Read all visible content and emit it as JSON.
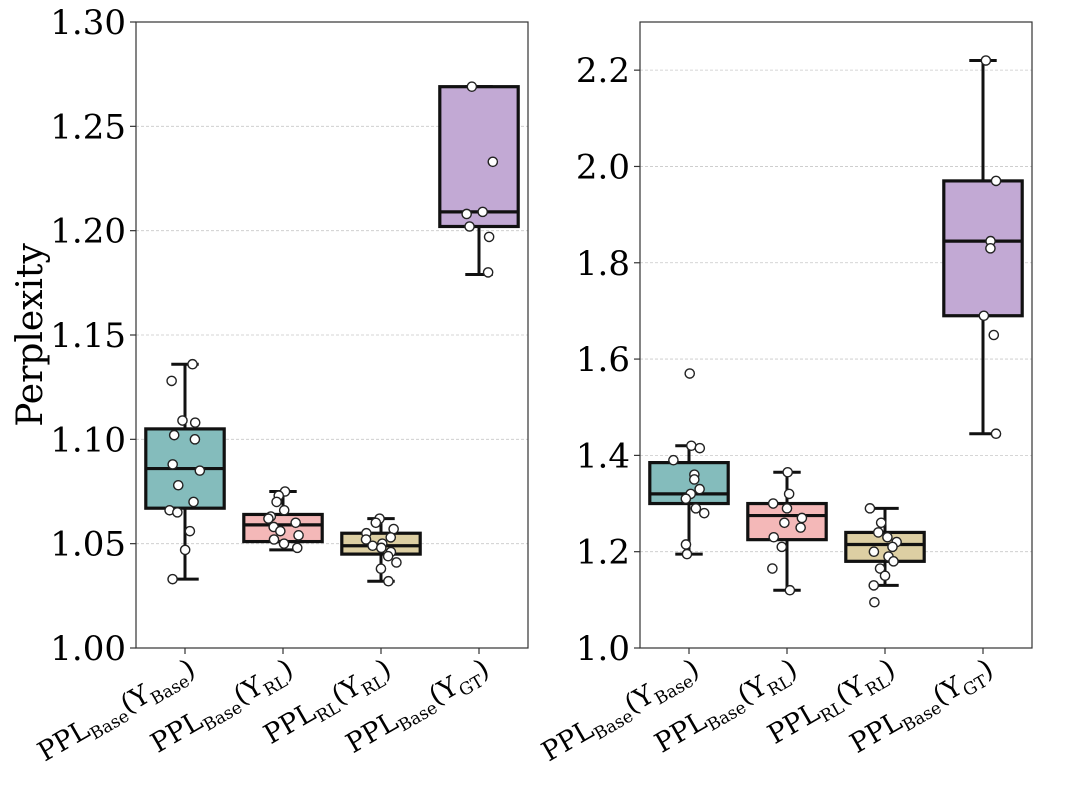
{
  "chart_data": [
    {
      "type": "box",
      "ylabel": "Perplexity",
      "ylim": [
        1.0,
        1.3
      ],
      "yticks": [
        1.0,
        1.05,
        1.1,
        1.15,
        1.2,
        1.25,
        1.3
      ],
      "ytick_labels": [
        "1.00",
        "1.05",
        "1.10",
        "1.15",
        "1.20",
        "1.25",
        "1.30"
      ],
      "grid": "horizontal-dashed",
      "categories": [
        {
          "main": "PPL",
          "sub": "Base",
          "arg": "Y",
          "arg_sub": "Base"
        },
        {
          "main": "PPL",
          "sub": "Base",
          "arg": "Y",
          "arg_sub": "RL"
        },
        {
          "main": "PPL",
          "sub": "RL",
          "arg": "Y",
          "arg_sub": "RL"
        },
        {
          "main": "PPL",
          "sub": "Base",
          "arg": "Y",
          "arg_sub": "GT"
        }
      ],
      "boxes": [
        {
          "color": "#84bcbc",
          "q1": 1.067,
          "median": 1.086,
          "q3": 1.105,
          "whisker_low": 1.033,
          "whisker_high": 1.136,
          "points": [
            1.136,
            1.128,
            1.109,
            1.108,
            1.102,
            1.1,
            1.088,
            1.085,
            1.078,
            1.07,
            1.066,
            1.065,
            1.056,
            1.047,
            1.033
          ]
        },
        {
          "color": "#f4b8b8",
          "q1": 1.051,
          "median": 1.059,
          "q3": 1.064,
          "whisker_low": 1.047,
          "whisker_high": 1.075,
          "points": [
            1.075,
            1.073,
            1.07,
            1.066,
            1.063,
            1.062,
            1.06,
            1.058,
            1.056,
            1.054,
            1.052,
            1.05,
            1.048
          ]
        },
        {
          "color": "#ddcfa3",
          "q1": 1.045,
          "median": 1.049,
          "q3": 1.055,
          "whisker_low": 1.032,
          "whisker_high": 1.062,
          "points": [
            1.062,
            1.06,
            1.057,
            1.055,
            1.053,
            1.052,
            1.05,
            1.049,
            1.048,
            1.046,
            1.044,
            1.041,
            1.038,
            1.032
          ]
        },
        {
          "color": "#c2a9d4",
          "q1": 1.202,
          "median": 1.209,
          "q3": 1.269,
          "whisker_low": 1.179,
          "whisker_high": 1.269,
          "points": [
            1.269,
            1.233,
            1.209,
            1.208,
            1.202,
            1.197,
            1.18
          ]
        }
      ]
    },
    {
      "type": "box",
      "ylabel": "",
      "ylim": [
        1.0,
        2.3
      ],
      "yticks": [
        1.0,
        1.2,
        1.4,
        1.6,
        1.8,
        2.0,
        2.2
      ],
      "ytick_labels": [
        "1.0",
        "1.2",
        "1.4",
        "1.6",
        "1.8",
        "2.0",
        "2.2"
      ],
      "grid": "horizontal-dashed",
      "categories": [
        {
          "main": "PPL",
          "sub": "Base",
          "arg": "Y",
          "arg_sub": "Base"
        },
        {
          "main": "PPL",
          "sub": "Base",
          "arg": "Y",
          "arg_sub": "RL"
        },
        {
          "main": "PPL",
          "sub": "RL",
          "arg": "Y",
          "arg_sub": "RL"
        },
        {
          "main": "PPL",
          "sub": "Base",
          "arg": "Y",
          "arg_sub": "GT"
        }
      ],
      "boxes": [
        {
          "color": "#84bcbc",
          "q1": 1.3,
          "median": 1.32,
          "q3": 1.385,
          "whisker_low": 1.195,
          "whisker_high": 1.42,
          "points": [
            1.57,
            1.42,
            1.415,
            1.39,
            1.36,
            1.35,
            1.33,
            1.32,
            1.31,
            1.29,
            1.28,
            1.215,
            1.195
          ]
        },
        {
          "color": "#f4b8b8",
          "q1": 1.225,
          "median": 1.275,
          "q3": 1.3,
          "whisker_low": 1.12,
          "whisker_high": 1.365,
          "points": [
            1.365,
            1.32,
            1.3,
            1.29,
            1.27,
            1.26,
            1.25,
            1.23,
            1.21,
            1.165,
            1.12
          ]
        },
        {
          "color": "#ddcfa3",
          "q1": 1.18,
          "median": 1.215,
          "q3": 1.24,
          "whisker_low": 1.13,
          "whisker_high": 1.29,
          "points": [
            1.29,
            1.26,
            1.24,
            1.23,
            1.22,
            1.21,
            1.2,
            1.19,
            1.18,
            1.165,
            1.15,
            1.13,
            1.095
          ]
        },
        {
          "color": "#c2a9d4",
          "q1": 1.69,
          "median": 1.845,
          "q3": 1.97,
          "whisker_low": 1.445,
          "whisker_high": 2.22,
          "points": [
            2.22,
            1.97,
            1.845,
            1.83,
            1.69,
            1.65,
            1.445
          ]
        }
      ]
    }
  ]
}
